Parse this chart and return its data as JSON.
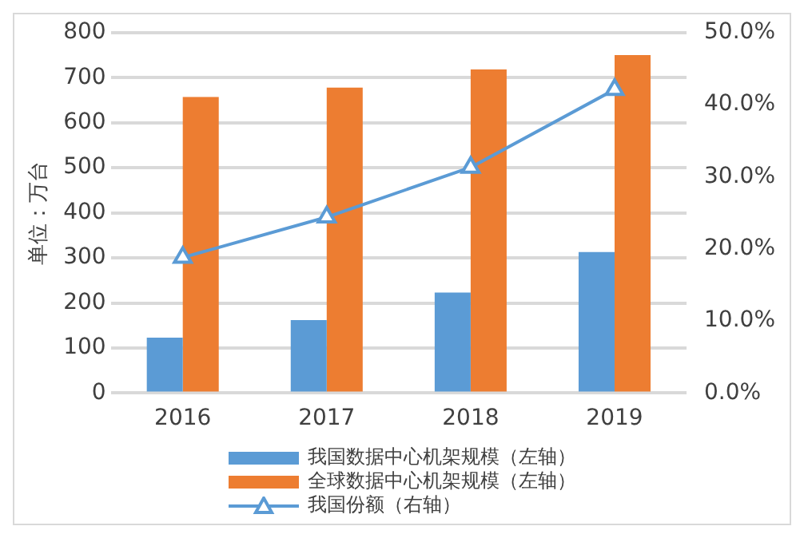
{
  "chart_data": {
    "type": "bar",
    "categories": [
      "2016",
      "2017",
      "2018",
      "2019"
    ],
    "ylabel": "单位：万台",
    "ylim": [
      0,
      800
    ],
    "yticks": [
      0,
      100,
      200,
      300,
      400,
      500,
      600,
      700,
      800
    ],
    "y2lim": [
      0,
      50
    ],
    "y2ticks": [
      {
        "value": 0,
        "label": "0.0%"
      },
      {
        "value": 10,
        "label": "10.0%"
      },
      {
        "value": 20,
        "label": "20.0%"
      },
      {
        "value": 30,
        "label": "30.0%"
      },
      {
        "value": 40,
        "label": "40.0%"
      },
      {
        "value": 50,
        "label": "50.0%"
      }
    ],
    "grid": "y",
    "legend": "bottom",
    "series": [
      {
        "name": "我国数据中心机架规模（左轴）",
        "color": "#5b9bd5",
        "values": [
          123,
          162,
          223,
          313
        ]
      },
      {
        "name": "全球数据中心机架规模（左轴）",
        "color": "#ed7d31",
        "values": [
          657,
          678,
          718,
          750
        ]
      },
      {
        "name": "我国份额（右轴）",
        "type": "line",
        "axis": "y2",
        "marker": "triangle",
        "color": "#5b9bd5",
        "values": [
          18.8,
          24.4,
          31.3,
          42.1
        ]
      }
    ]
  }
}
